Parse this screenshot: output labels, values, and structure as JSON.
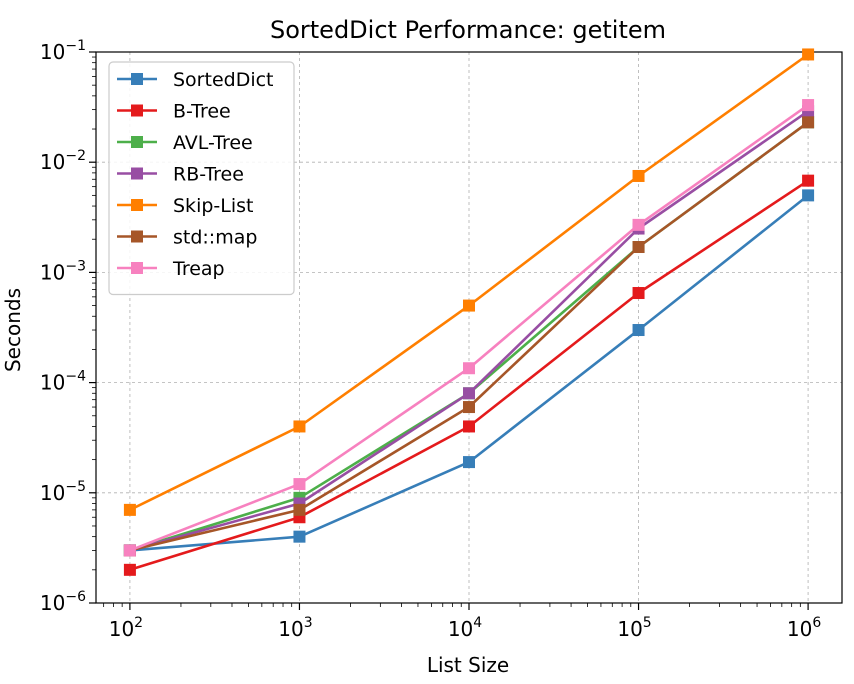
{
  "chart_data": {
    "type": "line",
    "title": "SortedDict Performance: getitem",
    "xlabel": "List Size",
    "ylabel": "Seconds",
    "xscale": "log",
    "yscale": "log",
    "x": [
      100,
      1000,
      10000,
      100000,
      1000000
    ],
    "xlim_log10": [
      1.8,
      6.2
    ],
    "ylim_log10": [
      -6,
      -1
    ],
    "x_ticks": [
      {
        "base": "10",
        "exp": "2",
        "log10": 2
      },
      {
        "base": "10",
        "exp": "3",
        "log10": 3
      },
      {
        "base": "10",
        "exp": "4",
        "log10": 4
      },
      {
        "base": "10",
        "exp": "5",
        "log10": 5
      },
      {
        "base": "10",
        "exp": "6",
        "log10": 6
      }
    ],
    "y_ticks": [
      {
        "base": "10",
        "exp": "−6",
        "log10": -6
      },
      {
        "base": "10",
        "exp": "−5",
        "log10": -5
      },
      {
        "base": "10",
        "exp": "−4",
        "log10": -4
      },
      {
        "base": "10",
        "exp": "−3",
        "log10": -3
      },
      {
        "base": "10",
        "exp": "−2",
        "log10": -2
      },
      {
        "base": "10",
        "exp": "−1",
        "log10": -1
      }
    ],
    "grid": true,
    "legend_position": "upper-left",
    "series": [
      {
        "name": "SortedDict",
        "color": "#377eb8",
        "values": [
          3e-06,
          4e-06,
          1.9e-05,
          0.0003,
          0.005
        ]
      },
      {
        "name": "B-Tree",
        "color": "#e41a1c",
        "values": [
          2e-06,
          6e-06,
          4e-05,
          0.00065,
          0.0068
        ]
      },
      {
        "name": "AVL-Tree",
        "color": "#4daf4a",
        "values": [
          3e-06,
          9e-06,
          8e-05,
          0.0017,
          0.023
        ]
      },
      {
        "name": "RB-Tree",
        "color": "#984ea3",
        "values": [
          3e-06,
          8e-06,
          8e-05,
          0.0025,
          0.029
        ]
      },
      {
        "name": "Skip-List",
        "color": "#ff7f00",
        "values": [
          7e-06,
          4e-05,
          0.0005,
          0.0075,
          0.095
        ]
      },
      {
        "name": "std::map",
        "color": "#a65628",
        "values": [
          3e-06,
          7e-06,
          6e-05,
          0.0017,
          0.023
        ]
      },
      {
        "name": "Treap",
        "color": "#f781bf",
        "values": [
          3e-06,
          1.2e-05,
          0.000135,
          0.0027,
          0.033
        ]
      }
    ]
  }
}
